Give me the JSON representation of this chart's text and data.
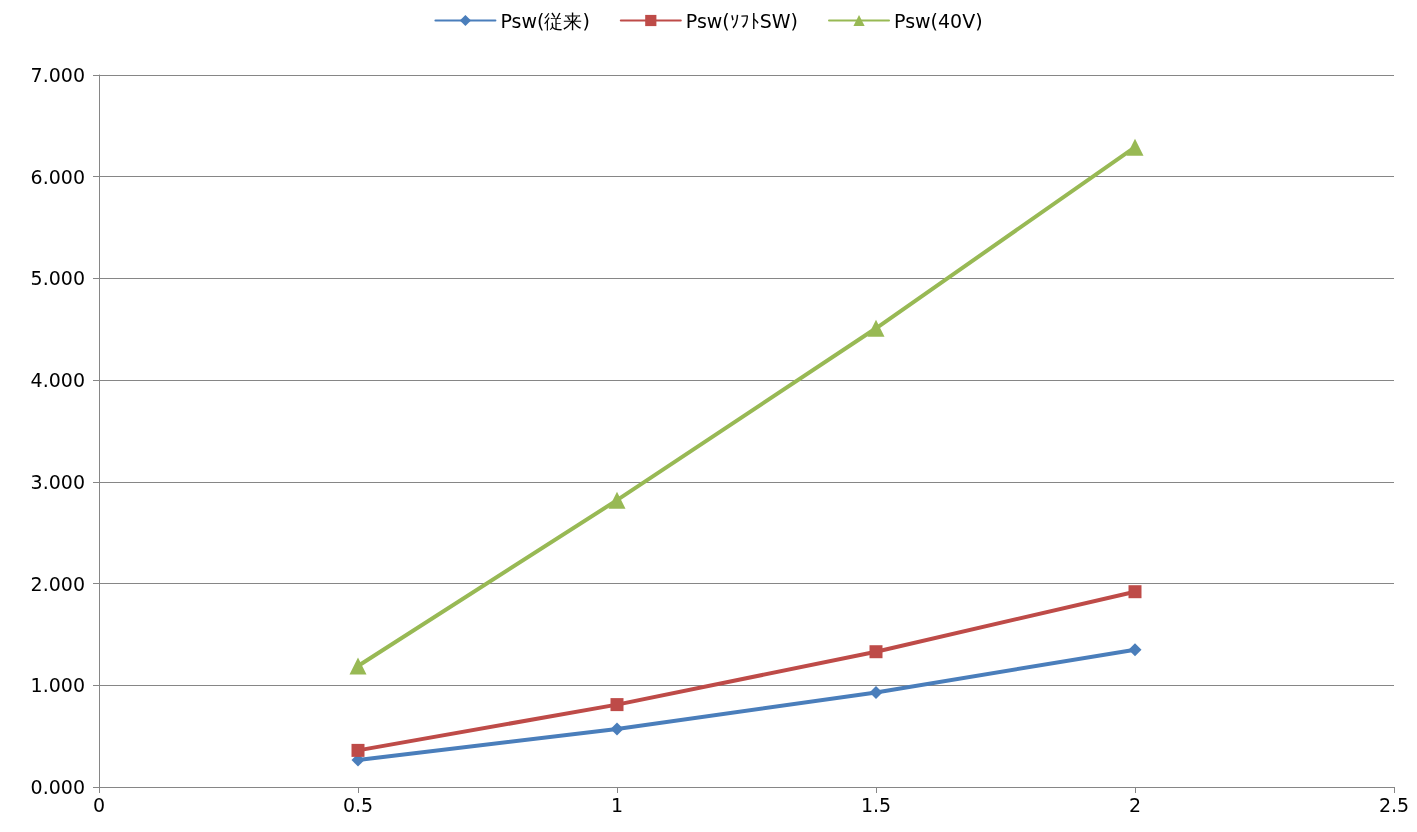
{
  "chart_data": {
    "type": "line",
    "x": [
      0.5,
      1,
      1.5,
      2
    ],
    "series": [
      {
        "name": "Psw(従来)",
        "color": "#4a7ebb",
        "marker": "diamond",
        "values": [
          0.265,
          0.57,
          0.93,
          1.35
        ]
      },
      {
        "name": "Psw(ｿﾌﾄSW)",
        "color": "#be4b48",
        "marker": "square",
        "values": [
          0.36,
          0.81,
          1.33,
          1.92
        ]
      },
      {
        "name": "Psw(40V)",
        "color": "#98b954",
        "marker": "triangle",
        "values": [
          1.19,
          2.82,
          4.51,
          6.29
        ]
      }
    ],
    "xlim": [
      0,
      2.5
    ],
    "xticks": [
      0,
      0.5,
      1,
      1.5,
      2,
      2.5
    ],
    "ylim": [
      0,
      7
    ],
    "yticks": [
      {
        "value": 0,
        "label": "0.000"
      },
      {
        "value": 1,
        "label": "1.000"
      },
      {
        "value": 2,
        "label": "2.000"
      },
      {
        "value": 3,
        "label": "3.000"
      },
      {
        "value": 4,
        "label": "4.000"
      },
      {
        "value": 5,
        "label": "5.000"
      },
      {
        "value": 6,
        "label": "6.000"
      },
      {
        "value": 7,
        "label": "7.000"
      }
    ],
    "grid": "y",
    "legend": "top",
    "line_style": "solid"
  }
}
